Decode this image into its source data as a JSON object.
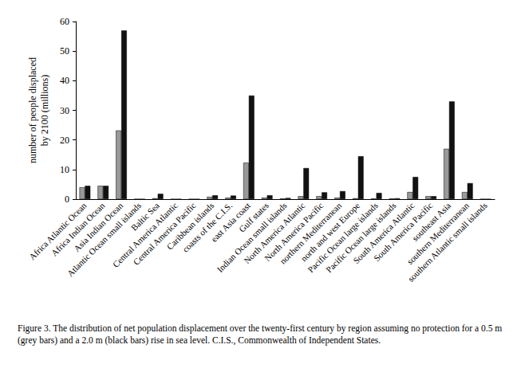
{
  "chart_data": {
    "type": "bar",
    "y_label": "number of people displaced\nby 2100 (millions)",
    "caption": "Figure 3. The distribution of net population displacement over the twenty-first century by region assuming no protection for a 0.5 m (grey bars) and a 2.0 m (black bars) rise in sea level. C.I.S., Commonwealth of Independent States.",
    "categories": [
      "Africa Atlantic Ocean",
      "Africa Indian Ocean",
      "Asia Indian Ocean",
      "Atlantic Ocean small islands",
      "Baltic Sea",
      "Central America Atlantic",
      "Central America Pacific",
      "Caribbean islands",
      "coasts of the C.I.S.",
      "east Asia coast",
      "Gulf states",
      "Indian Ocean small islands",
      "North America Atlantic",
      "North America Pacific",
      "northern Mediterranean",
      "north and west Europe",
      "Pacific Ocean large islands",
      "Pacific Ocean large islands",
      "South America Atlantic",
      "South America Pacific",
      "southeast Asia",
      "southern Mediterranean",
      "southern Atlantic small islands"
    ],
    "series": [
      {
        "color": "#999999",
        "values": [
          4,
          4.5,
          23.2,
          0,
          0.3,
          0,
          0,
          0.8,
          0.5,
          12.3,
          0.5,
          0.2,
          1,
          1,
          0.5,
          0.3,
          0.2,
          0.2,
          2.4,
          1,
          17,
          2.4,
          0
        ]
      },
      {
        "color": "#111111",
        "values": [
          4.5,
          4.5,
          57,
          0,
          1.8,
          0,
          0,
          1.3,
          1.2,
          35,
          1.3,
          0.4,
          10.5,
          2.3,
          2.7,
          14.5,
          2.1,
          0.3,
          7.5,
          1,
          33,
          5.4,
          0
        ]
      }
    ],
    "ylim": [
      0,
      60
    ],
    "yticks": [
      0,
      10,
      20,
      30,
      40,
      50,
      60
    ],
    "grid": false
  }
}
